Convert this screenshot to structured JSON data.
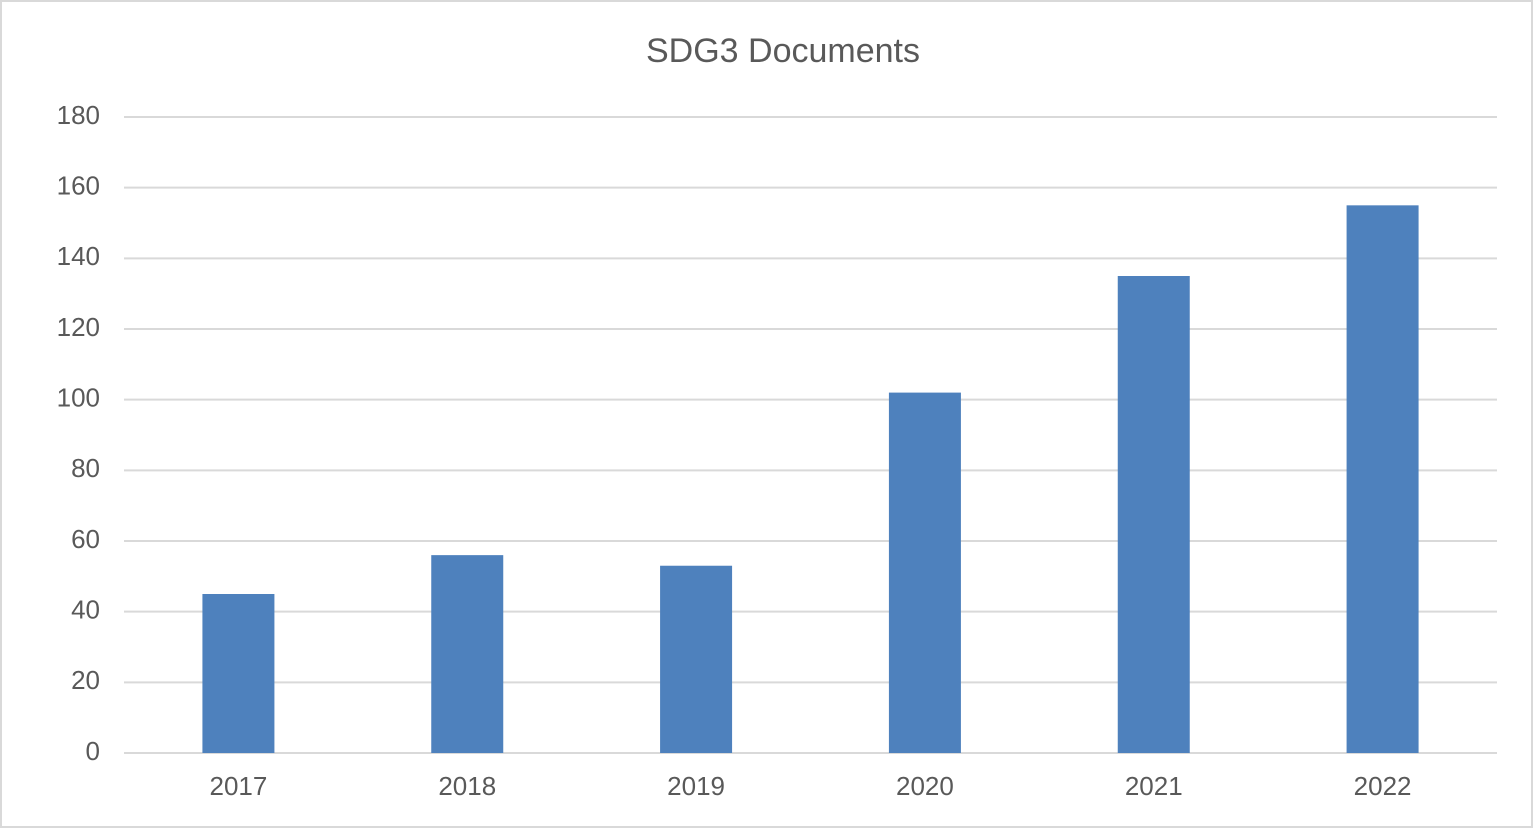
{
  "chart_data": {
    "type": "bar",
    "title": "SDG3 Documents",
    "categories": [
      "2017",
      "2018",
      "2019",
      "2020",
      "2021",
      "2022"
    ],
    "values": [
      45,
      56,
      53,
      102,
      135,
      155
    ],
    "color": "#4e81bd",
    "ylim": [
      0,
      180
    ],
    "yticks": [
      0,
      20,
      40,
      60,
      80,
      100,
      120,
      140,
      160,
      180
    ],
    "grid": true
  }
}
